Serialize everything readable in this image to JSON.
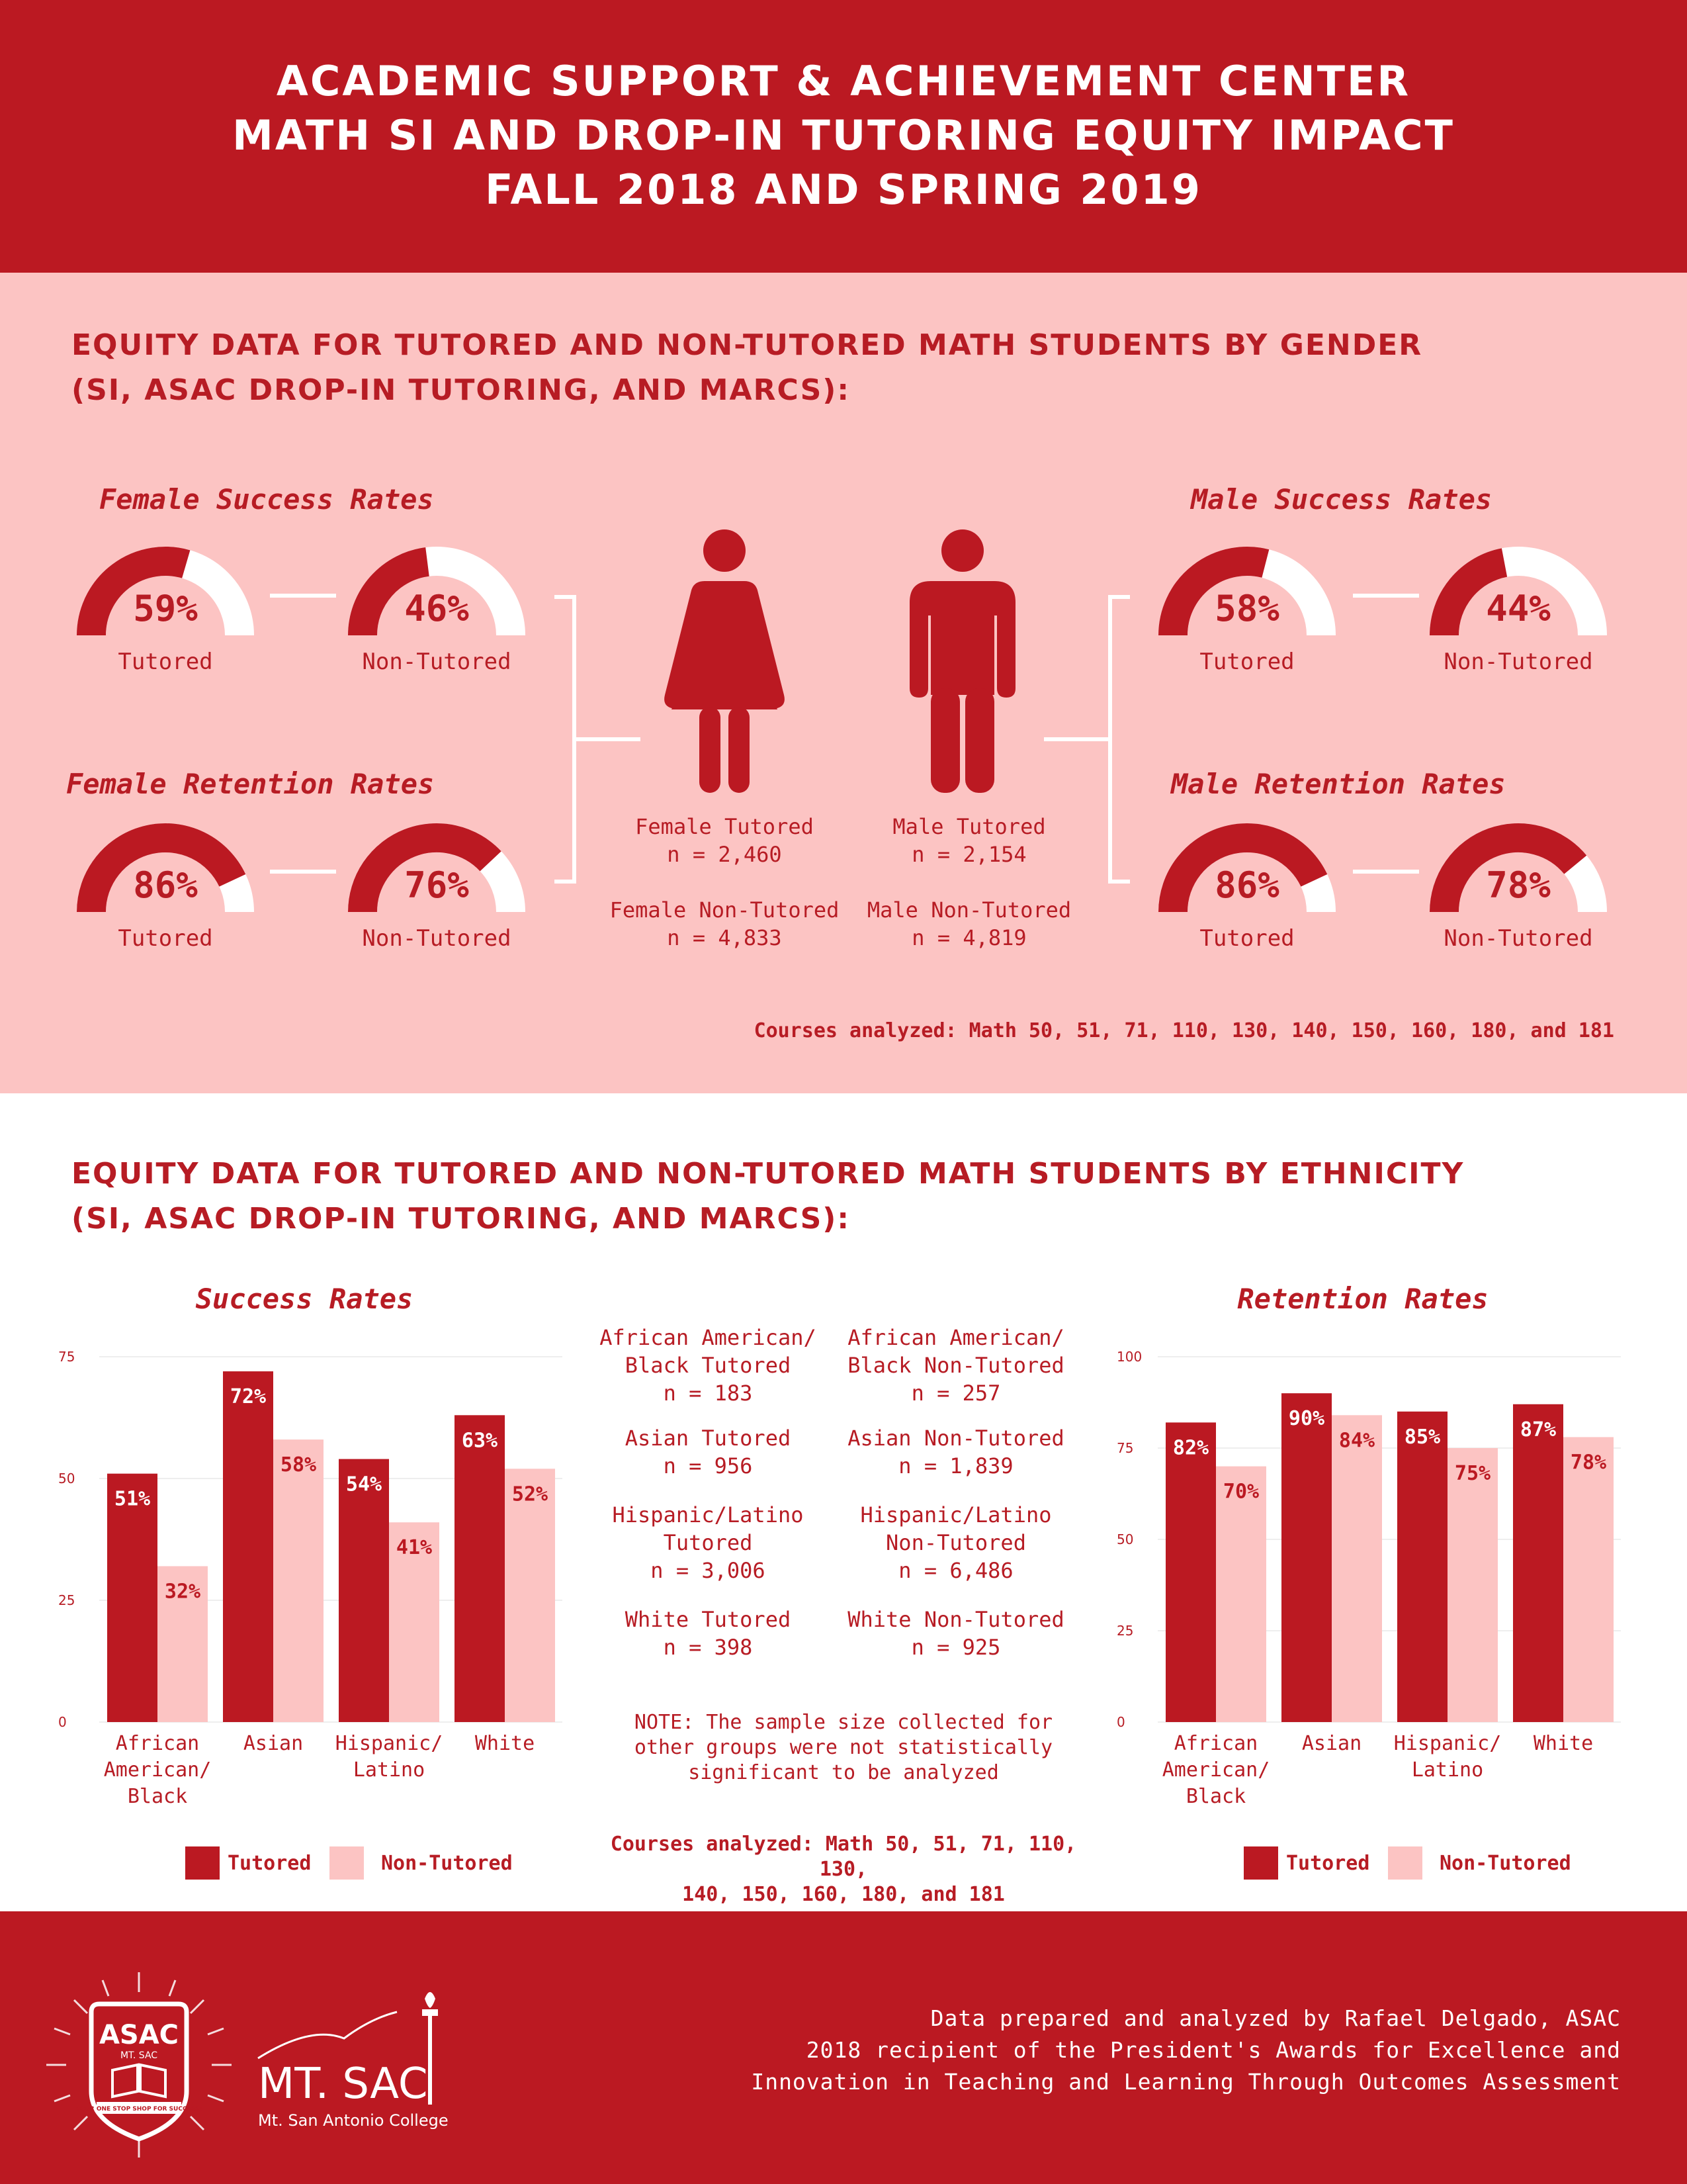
{
  "header": {
    "line1": "ACADEMIC SUPPORT & ACHIEVEMENT CENTER",
    "line2": "MATH SI AND DROP-IN TUTORING EQUITY IMPACT",
    "line3": "FALL 2018 AND SPRING 2019"
  },
  "gender": {
    "title_line1": "EQUITY DATA FOR TUTORED AND NON-TUTORED MATH STUDENTS BY GENDER",
    "title_line2": "(SI, ASAC DROP-IN TUTORING, AND MARCS):",
    "female_success_title": "Female Success Rates",
    "female_retention_title": "Female Retention Rates",
    "male_success_title": "Male Success Rates",
    "male_retention_title": "Male Retention Rates",
    "gauges": {
      "female_success_tutored": {
        "value": 59,
        "label": "59%",
        "caption": "Tutored"
      },
      "female_success_non": {
        "value": 46,
        "label": "46%",
        "caption": "Non-Tutored"
      },
      "female_retention_tutored": {
        "value": 86,
        "label": "86%",
        "caption": "Tutored"
      },
      "female_retention_non": {
        "value": 76,
        "label": "76%",
        "caption": "Non-Tutored"
      },
      "male_success_tutored": {
        "value": 58,
        "label": "58%",
        "caption": "Tutored"
      },
      "male_success_non": {
        "value": 44,
        "label": "44%",
        "caption": "Non-Tutored"
      },
      "male_retention_tutored": {
        "value": 86,
        "label": "86%",
        "caption": "Tutored"
      },
      "male_retention_non": {
        "value": 78,
        "label": "78%",
        "caption": "Non-Tutored"
      }
    },
    "counts": {
      "female_tutored": "Female Tutored",
      "female_tutored_n": "n = 2,460",
      "female_non": "Female Non-Tutored",
      "female_non_n": "n = 4,833",
      "male_tutored": "Male Tutored",
      "male_tutored_n": "n = 2,154",
      "male_non": "Male Non-Tutored",
      "male_non_n": "n = 4,819"
    },
    "courses": "Courses analyzed: Math 50, 51, 71, 110, 130, 140, 150, 160, 180, and 181"
  },
  "ethnicity": {
    "title_line1": "EQUITY DATA FOR TUTORED AND NON-TUTORED MATH STUDENTS BY ETHNICITY",
    "title_line2": "(SI, ASAC DROP-IN TUTORING, AND MARCS):",
    "counts": [
      {
        "l1": "African American/",
        "l2": "Black Tutored",
        "l3": "n = 183"
      },
      {
        "l1": "African American/",
        "l2": "Black Non-Tutored",
        "l3": "n = 257"
      },
      {
        "l1": "Asian Tutored",
        "l2": "n = 956",
        "l3": ""
      },
      {
        "l1": "Asian Non-Tutored",
        "l2": "n = 1,839",
        "l3": ""
      },
      {
        "l1": "Hispanic/Latino",
        "l2": "Tutored",
        "l3": "n = 3,006"
      },
      {
        "l1": "Hispanic/Latino",
        "l2": "Non-Tutored",
        "l3": "n = 6,486"
      },
      {
        "l1": "White Tutored",
        "l2": "n = 398",
        "l3": ""
      },
      {
        "l1": "White Non-Tutored",
        "l2": "n = 925",
        "l3": ""
      }
    ],
    "note_l1": "NOTE: The sample size collected for",
    "note_l2": "other groups were not statistically",
    "note_l3": "significant to be analyzed",
    "courses_l1": "Courses analyzed: Math 50, 51, 71, 110, 130,",
    "courses_l2": "140, 150, 160, 180, and 181",
    "legend_tutored": "Tutored",
    "legend_non": "Non-Tutored"
  },
  "chart_data": [
    {
      "type": "bar",
      "title": "Success Rates",
      "categories": [
        [
          "African",
          "American/",
          "Black"
        ],
        [
          "Asian"
        ],
        [
          "Hispanic/",
          "Latino"
        ],
        [
          "White"
        ]
      ],
      "series": [
        {
          "name": "Tutored",
          "values": [
            51,
            72,
            54,
            63
          ],
          "labels": [
            "51%",
            "72%",
            "54%",
            "63%"
          ]
        },
        {
          "name": "Non-Tutored",
          "values": [
            32,
            58,
            41,
            52
          ],
          "labels": [
            "32%",
            "58%",
            "41%",
            "52%"
          ]
        }
      ],
      "yticks": [
        "0",
        "25",
        "50",
        "75"
      ],
      "ylim": [
        0,
        75
      ],
      "grid": true,
      "legend": "bottom",
      "colors": {
        "tutored": "#bb1922",
        "non": "#fcc4c3"
      }
    },
    {
      "type": "bar",
      "title": "Retention Rates",
      "categories": [
        [
          "African",
          "American/",
          "Black"
        ],
        [
          "Asian"
        ],
        [
          "Hispanic/",
          "Latino"
        ],
        [
          "White"
        ]
      ],
      "series": [
        {
          "name": "Tutored",
          "values": [
            82,
            90,
            85,
            87
          ],
          "labels": [
            "82%",
            "90%",
            "85%",
            "87%"
          ]
        },
        {
          "name": "Non-Tutored",
          "values": [
            70,
            84,
            75,
            78
          ],
          "labels": [
            "70%",
            "84%",
            "75%",
            "78%"
          ]
        }
      ],
      "yticks": [
        "0",
        "25",
        "50",
        "75",
        "100"
      ],
      "ylim": [
        0,
        100
      ],
      "grid": true,
      "legend": "bottom",
      "colors": {
        "tutored": "#bb1922",
        "non": "#fcc4c3"
      }
    }
  ],
  "footer": {
    "badge_title": "ASAC",
    "badge_sub": "MT. SAC",
    "badge_tag": "YOUR ONE STOP SHOP FOR SUCCESS!",
    "college_logo": "MT. SAC",
    "college_name": "Mt. San Antonio College",
    "credit_l1": "Data prepared and analyzed by Rafael Delgado, ASAC",
    "credit_l2": "2018 recipient of the President's Awards for Excellence and",
    "credit_l3": "Innovation in Teaching and Learning Through Outcomes Assessment"
  },
  "colors": {
    "brand_red": "#bb1922",
    "pink": "#fcc4c3",
    "gauge_empty": "#ffffff"
  }
}
